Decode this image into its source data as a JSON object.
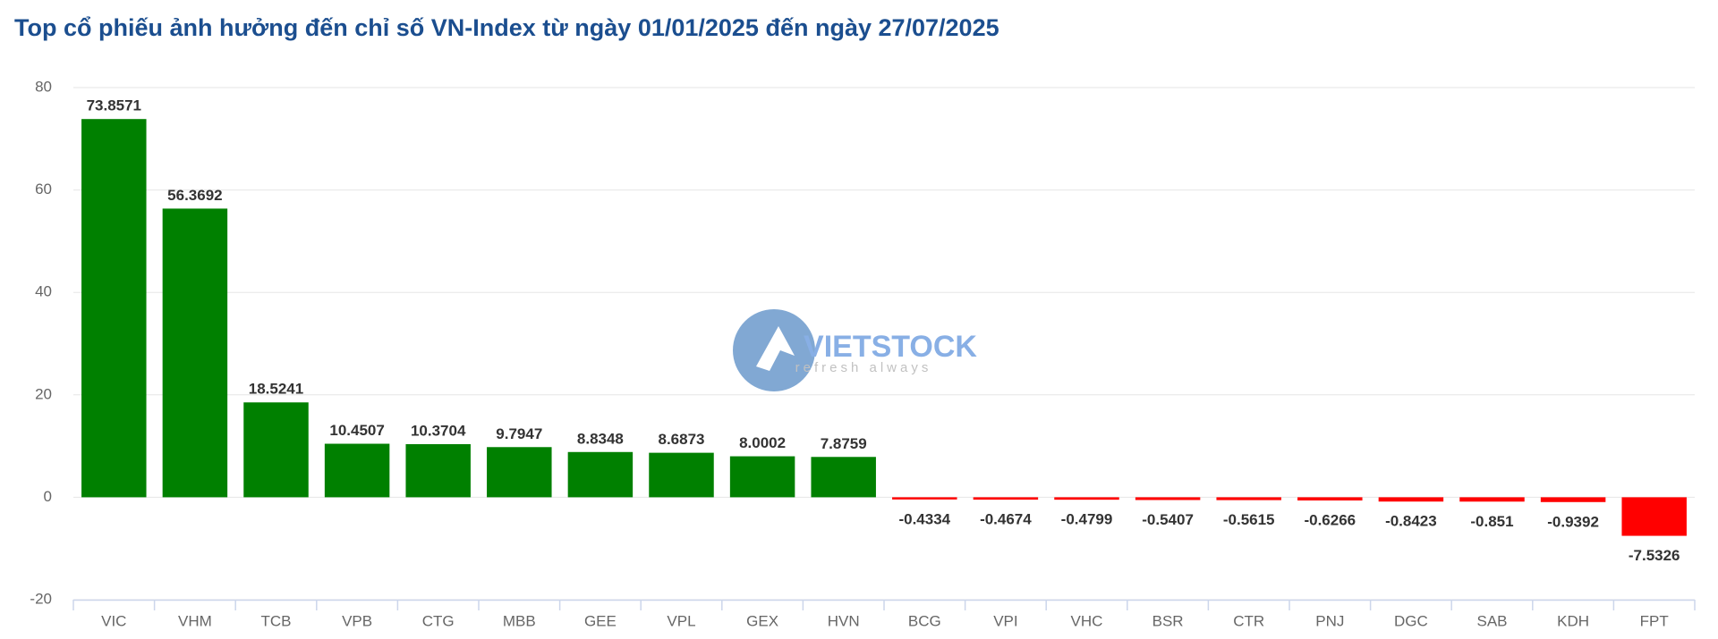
{
  "chart_data": {
    "type": "bar",
    "title": "Top cổ phiếu ảnh hưởng đến chỉ số VN-Index từ ngày 01/01/2025 đến ngày 27/07/2025",
    "categories": [
      "VIC",
      "VHM",
      "TCB",
      "VPB",
      "CTG",
      "MBB",
      "GEE",
      "VPL",
      "GEX",
      "HVN",
      "BCG",
      "VPI",
      "VHC",
      "BSR",
      "CTR",
      "PNJ",
      "DGC",
      "SAB",
      "KDH",
      "FPT"
    ],
    "values": [
      73.8571,
      56.3692,
      18.5241,
      10.4507,
      10.3704,
      9.7947,
      8.8348,
      8.6873,
      8.0002,
      7.8759,
      -0.4334,
      -0.4674,
      -0.4799,
      -0.5407,
      -0.5615,
      -0.6266,
      -0.8423,
      -0.851,
      -0.9392,
      -7.5326
    ],
    "positive_color": "#008000",
    "negative_color": "#ff0000",
    "ylim": [
      -20,
      80
    ],
    "yticks": [
      -20,
      0,
      20,
      40,
      60,
      80
    ],
    "grid": true,
    "watermark": {
      "brand": "VIETSTOCK",
      "tagline": "refresh always"
    }
  }
}
